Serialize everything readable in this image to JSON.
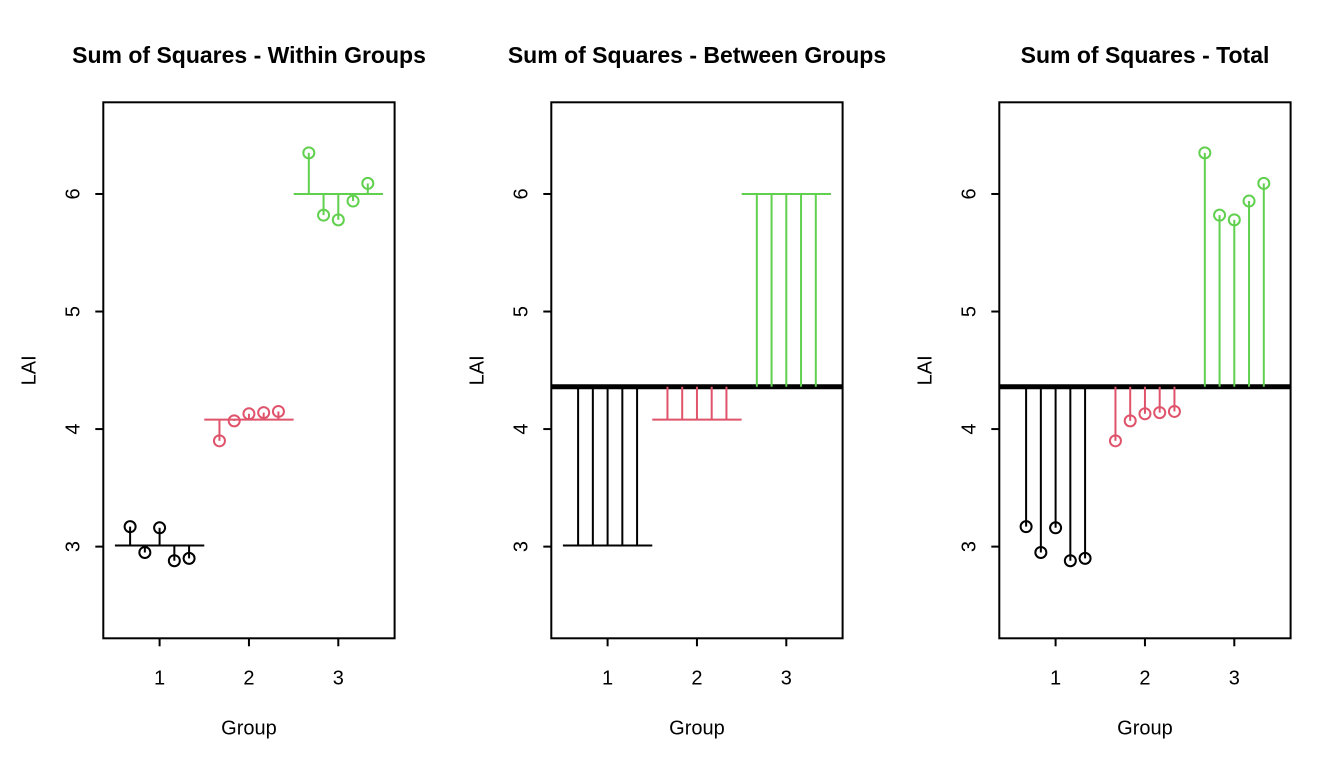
{
  "page": {
    "background": "#ffffff",
    "foreground": "#000000"
  },
  "chart_data": {
    "type": "scatter",
    "layout": "three side-by-side panels, R base-graphics style, no grid, open-circle points with deviation segments",
    "xlabel": "Group",
    "ylabel": "LAI",
    "x_ticks": [
      1,
      2,
      3
    ],
    "y_ticks": [
      3,
      4,
      5,
      6
    ],
    "xlim": [
      0.37,
      3.63
    ],
    "ylim": [
      2.22,
      6.78
    ],
    "grid": false,
    "grand_mean": 4.36,
    "point_x_offsets": [
      -0.33,
      -0.165,
      0,
      0.165,
      0.33
    ],
    "mean_segment_halfwidth": 0.5,
    "groups": [
      {
        "group": 1,
        "color": "#000000",
        "values": [
          3.17,
          2.95,
          3.16,
          2.88,
          2.9
        ],
        "mean": 3.01
      },
      {
        "group": 2,
        "color": "#DF536B",
        "values": [
          3.9,
          4.07,
          4.13,
          4.14,
          4.15
        ],
        "mean": 4.08
      },
      {
        "group": 3,
        "color": "#61D04F",
        "values": [
          6.35,
          5.82,
          5.78,
          5.94,
          6.09
        ],
        "mean": 6.0
      }
    ],
    "panels": [
      {
        "title": "Sum of Squares - Within Groups",
        "variant": "within",
        "description": "points with segments to their own group mean; thin mean segment per group"
      },
      {
        "title": "Sum of Squares - Between Groups",
        "variant": "between",
        "description": "thick horizontal grand-mean line; vertical segments from grand mean to each group mean; thin mean segment per group; no points"
      },
      {
        "title": "Sum of Squares - Total",
        "variant": "total",
        "description": "thick horizontal grand-mean line; points with segments to the grand mean"
      }
    ]
  }
}
